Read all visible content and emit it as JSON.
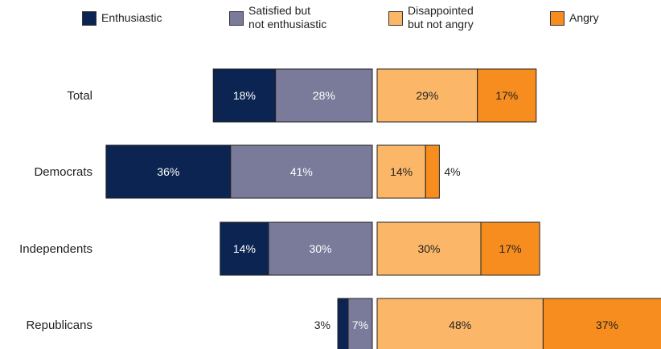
{
  "chart_data": {
    "type": "bar",
    "orientation": "horizontal",
    "layout": "diverging-stacked",
    "title": "",
    "xlabel": "",
    "ylabel": "",
    "categories": [
      "Total",
      "Democrats",
      "Independents",
      "Republicans"
    ],
    "series": [
      {
        "name": "Enthusiastic",
        "side": "left",
        "color": "#0b2452",
        "values": [
          18,
          36,
          14,
          3
        ]
      },
      {
        "name": "Satisfied but\nnot enthusiastic",
        "side": "left",
        "color": "#7a7b9a",
        "values": [
          28,
          41,
          30,
          7
        ]
      },
      {
        "name": "Disappointed\nbut not angry",
        "side": "right",
        "color": "#fbb767",
        "values": [
          29,
          14,
          30,
          48
        ]
      },
      {
        "name": "Angry",
        "side": "right",
        "color": "#f78d1f",
        "values": [
          17,
          4,
          17,
          37
        ]
      }
    ],
    "data_labels": [
      [
        "18%",
        "28%",
        "29%",
        "17%"
      ],
      [
        "36%",
        "41%",
        "14%",
        "4%"
      ],
      [
        "14%",
        "30%",
        "30%",
        "17%"
      ],
      [
        "3%",
        "7%",
        "48%",
        "37%"
      ]
    ],
    "legend_position": "top",
    "grid": false
  }
}
